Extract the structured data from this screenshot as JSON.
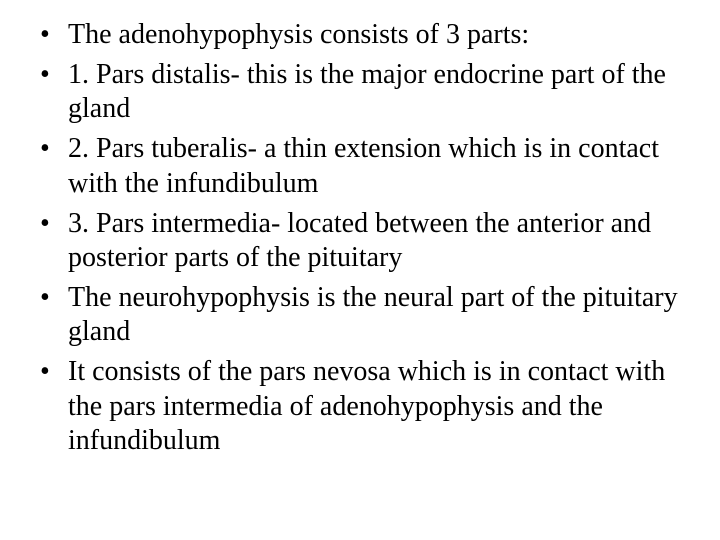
{
  "slide": {
    "background_color": "#ffffff",
    "text_color": "#000000",
    "font_family": "Times New Roman",
    "font_size_pt": 21,
    "bullet_char": "•",
    "items": [
      "The adenohypophysis consists of 3 parts:",
      "1. Pars distalis- this is the major endocrine part of the gland",
      "2. Pars tuberalis- a thin extension which is in contact with the infundibulum",
      "3. Pars intermedia- located between the anterior and posterior parts of the pituitary",
      "The neurohypophysis is the neural part of the pituitary gland",
      "It consists of  the pars nevosa which is in contact with the pars intermedia of adenohypophysis and the infundibulum"
    ]
  }
}
